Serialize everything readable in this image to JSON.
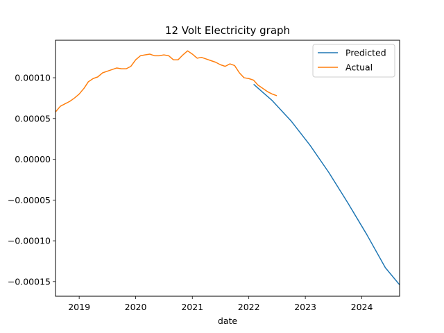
{
  "chart_data": {
    "type": "line",
    "title": "12 Volt Electricity graph",
    "xlabel": "date",
    "ylabel": "",
    "x_is_date": true,
    "xlim": [
      "2018-08-01",
      "2024-09-01"
    ],
    "ylim": [
      -0.000168,
      0.000146
    ],
    "x_ticks": [
      "2019-01-01",
      "2020-01-01",
      "2021-01-01",
      "2022-01-01",
      "2023-01-01",
      "2024-01-01"
    ],
    "x_tick_labels": [
      "2019",
      "2020",
      "2021",
      "2022",
      "2023",
      "2024"
    ],
    "y_ticks": [
      0.0001,
      5e-05,
      0.0,
      -5e-05,
      -0.0001,
      -0.00015
    ],
    "y_tick_labels": [
      "0.00010",
      "0.00005",
      "0.00000",
      "−0.00005",
      "−0.00010",
      "−0.00015"
    ],
    "legend_position": "top-right",
    "grid": false,
    "series": [
      {
        "name": "Predicted",
        "color": "#1f77b4",
        "x": [
          "2022-02-01",
          "2022-06-01",
          "2022-10-01",
          "2023-02-01",
          "2023-06-01",
          "2023-10-01",
          "2024-02-01",
          "2024-06-01",
          "2024-09-01"
        ],
        "y": [
          9.2e-05,
          7.2e-05,
          4.7e-05,
          1.7e-05,
          -1.6e-05,
          -5.3e-05,
          -9.2e-05,
          -0.000133,
          -0.000154
        ]
      },
      {
        "name": "Actual",
        "color": "#ff7f0e",
        "x": [
          "2018-08-01",
          "2018-09-01",
          "2018-10-01",
          "2018-11-01",
          "2018-12-01",
          "2019-01-01",
          "2019-02-01",
          "2019-03-01",
          "2019-04-01",
          "2019-05-01",
          "2019-06-01",
          "2019-07-01",
          "2019-08-01",
          "2019-09-01",
          "2019-10-01",
          "2019-11-01",
          "2019-12-01",
          "2020-01-01",
          "2020-02-01",
          "2020-03-01",
          "2020-04-01",
          "2020-05-01",
          "2020-06-01",
          "2020-07-01",
          "2020-08-01",
          "2020-09-01",
          "2020-10-01",
          "2020-11-01",
          "2020-12-01",
          "2021-01-01",
          "2021-02-01",
          "2021-03-01",
          "2021-04-01",
          "2021-05-01",
          "2021-06-01",
          "2021-07-01",
          "2021-08-01",
          "2021-09-01",
          "2021-10-01",
          "2021-11-01",
          "2021-12-01",
          "2022-01-01",
          "2022-02-01",
          "2022-03-01",
          "2022-04-01",
          "2022-05-01",
          "2022-06-01",
          "2022-07-01"
        ],
        "y": [
          5.8e-05,
          6.5e-05,
          6.8e-05,
          7.1e-05,
          7.5e-05,
          8e-05,
          8.7e-05,
          9.5e-05,
          9.9e-05,
          0.000101,
          0.000106,
          0.000108,
          0.00011,
          0.000112,
          0.000111,
          0.000111,
          0.000114,
          0.000122,
          0.000127,
          0.000128,
          0.000129,
          0.000127,
          0.000127,
          0.000128,
          0.000127,
          0.000122,
          0.000122,
          0.000128,
          0.000133,
          0.000129,
          0.000124,
          0.000125,
          0.000123,
          0.000121,
          0.000119,
          0.000116,
          0.000114,
          0.000117,
          0.000115,
          0.000106,
          0.0001,
          9.9e-05,
          9.7e-05,
          9.1e-05,
          8.7e-05,
          8.3e-05,
          8e-05,
          7.8e-05
        ]
      }
    ]
  }
}
